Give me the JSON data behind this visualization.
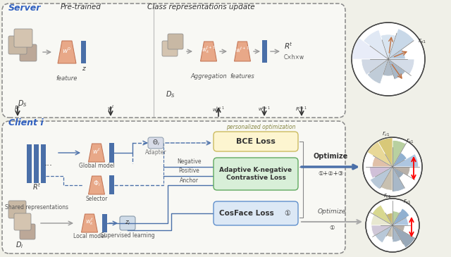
{
  "server_label": "Server",
  "client_label": "Client i",
  "pretrained": "Pre-trained",
  "class_update": "Class representations update",
  "personalized_opt": "personalized optimization",
  "bce_loss": "BCE Loss",
  "adaptive_loss": "Adaptive K-negative\nContrastive Loss",
  "cosface_loss": "CosFace Loss",
  "shared_rep": "Shared representations",
  "global_model": "Global model",
  "local_model": "Local model",
  "feature": "feature",
  "features": "features",
  "aggregation": "Aggregation",
  "supervised": "Supervised learning",
  "adapter": "Adapter",
  "selector": "Selector",
  "negative": "Negative",
  "positive": "Positive",
  "anchor": "Anchor",
  "optimize": "Optimize",
  "opt123": "①+②+③",
  "opt1": "①",
  "cosface_num": "①",
  "Cxhxw": "C×h×w",
  "server_pie_colors": [
    "#b8cce0",
    "#c8d8e8",
    "#d8e4f0",
    "#e0e8f4",
    "#e8ecf8",
    "#d0d8e4",
    "#c0ccd8",
    "#b0bcc8",
    "#a8b8c8",
    "#d4dce8"
  ],
  "mid_pie_colors": [
    "#aec6e0",
    "#90b0d0",
    "#b8d0a0",
    "#d8c878",
    "#e8d898",
    "#e0c0a8",
    "#d0c0d8",
    "#b8c8d8",
    "#c8c0b0",
    "#a8b8c8",
    "#98a8b8",
    "#b8b0a8"
  ],
  "bot_pie_colors": [
    "#aec6e0",
    "#90b0d0",
    "#b8d0a0",
    "#c8b870",
    "#d8d890",
    "#e8e8d0",
    "#d0c8d8",
    "#b8c8d8",
    "#c8c0b0",
    "#a8b8c8",
    "#98a8b8",
    "#b8b0a8"
  ],
  "bg": "#f0f0e8",
  "bce_face": "#fdf5d0",
  "bce_edge": "#ccbb60",
  "adap_face": "#d8efd8",
  "adap_edge": "#60aa60",
  "cos_face": "#dce8f5",
  "cos_edge": "#6090cc",
  "trap_color": "#e8a888",
  "trap_edge": "#c07050",
  "bar_color": "#4a6fa8",
  "arrow_blue": "#4a6fa8",
  "arrow_gray": "#999999",
  "blue_label": "#3060c0"
}
